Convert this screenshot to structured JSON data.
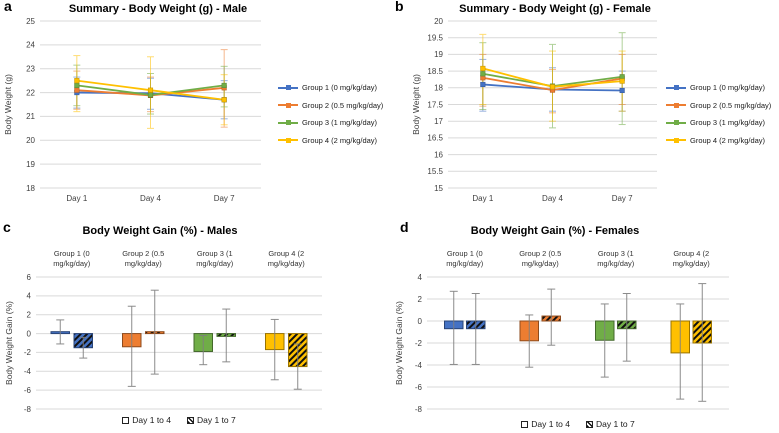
{
  "chart_data": [
    {
      "panel_letter": "a",
      "type": "line",
      "title": "Summary - Body Weight (g) - Male",
      "ylabel": "Body Weight (g)",
      "categories": [
        "Day 1",
        "Day 4",
        "Day 7"
      ],
      "ylim": [
        18,
        25
      ],
      "ystep": 1,
      "grid": true,
      "legend_position": "right",
      "series": [
        {
          "name": "Group 1 (0 mg/kg/day)",
          "color": "#4472C4",
          "values": [
            22.0,
            21.97,
            21.7
          ],
          "err_lo": [
            21.35,
            21.3,
            20.9
          ],
          "err_hi": [
            22.65,
            22.6,
            22.5
          ]
        },
        {
          "name": "Group 2 (0.5 mg/kg/day)",
          "color": "#ED7D31",
          "values": [
            22.1,
            21.88,
            22.2
          ],
          "err_lo": [
            21.3,
            21.2,
            20.55
          ],
          "err_hi": [
            22.9,
            22.65,
            23.8
          ]
        },
        {
          "name": "Group 3 (1 mg/kg/day)",
          "color": "#70AD47",
          "values": [
            22.3,
            21.9,
            22.3
          ],
          "err_lo": [
            21.45,
            21.1,
            21.4
          ],
          "err_hi": [
            23.15,
            22.8,
            23.1
          ]
        },
        {
          "name": "Group 4 (2 mg/kg/day)",
          "color": "#FFC000",
          "values": [
            22.5,
            22.1,
            21.7
          ],
          "err_lo": [
            21.2,
            20.5,
            20.65
          ],
          "err_hi": [
            23.55,
            23.5,
            22.75
          ]
        }
      ]
    },
    {
      "panel_letter": "b",
      "type": "line",
      "title": "Summary - Body Weight (g) - Female",
      "ylabel": "Body Weight (g)",
      "categories": [
        "Day 1",
        "Day 4",
        "Day 7"
      ],
      "ylim": [
        15,
        20
      ],
      "ystep": 0.5,
      "grid": true,
      "legend_position": "right",
      "series": [
        {
          "name": "Group 1 (0 mg/kg/day)",
          "color": "#4472C4",
          "values": [
            18.1,
            17.95,
            17.92
          ],
          "err_lo": [
            17.3,
            17.3,
            17.3
          ],
          "err_hi": [
            18.85,
            18.6,
            18.5
          ]
        },
        {
          "name": "Group 2 (0.5 mg/kg/day)",
          "color": "#ED7D31",
          "values": [
            18.3,
            17.93,
            18.28
          ],
          "err_lo": [
            17.45,
            17.25,
            17.5
          ],
          "err_hi": [
            19.0,
            18.55,
            19.0
          ]
        },
        {
          "name": "Group 3 (1 mg/kg/day)",
          "color": "#70AD47",
          "values": [
            18.42,
            18.05,
            18.33
          ],
          "err_lo": [
            17.35,
            16.8,
            16.9
          ],
          "err_hi": [
            19.35,
            19.3,
            19.65
          ]
        },
        {
          "name": "Group 4 (2 mg/kg/day)",
          "color": "#FFC000",
          "values": [
            18.58,
            18.03,
            18.2
          ],
          "err_lo": [
            17.5,
            17.0,
            17.3
          ],
          "err_hi": [
            19.6,
            19.1,
            19.1
          ]
        }
      ]
    },
    {
      "panel_letter": "c",
      "type": "bar",
      "title": "Body Weight Gain (%) - Males",
      "ylabel": "Body Weight Gain (%)",
      "group_labels": [
        [
          "Group 1 (0",
          "mg/kg/day)"
        ],
        [
          "Group 2 (0.5",
          "mg/kg/day)"
        ],
        [
          "Group 3 (1",
          "mg/kg/day)"
        ],
        [
          "Group 4 (2",
          "mg/kg/day)"
        ]
      ],
      "group_colors": [
        "#4472C4",
        "#ED7D31",
        "#70AD47",
        "#FFC000"
      ],
      "ylim": [
        -8,
        6
      ],
      "ystep": 2,
      "grid": true,
      "legend_position": "bottom",
      "series": [
        {
          "name": "Day 1 to 4",
          "style": "solid",
          "values": [
            0.2,
            -1.4,
            -1.9,
            -1.7
          ],
          "err_lo": [
            -1.1,
            -5.6,
            -3.3,
            -4.9
          ],
          "err_hi": [
            1.45,
            2.9,
            -0.2,
            1.5
          ]
        },
        {
          "name": "Day 1 to 7",
          "style": "hatched",
          "values": [
            -1.5,
            0.2,
            -0.3,
            -3.5
          ],
          "err_lo": [
            -2.6,
            -4.3,
            -3.0,
            -5.9
          ],
          "err_hi": [
            -0.4,
            4.6,
            2.6,
            -1.1
          ]
        }
      ]
    },
    {
      "panel_letter": "d",
      "type": "bar",
      "title": "Body Weight Gain (%) - Females",
      "ylabel": "Body Weight Gain (%)",
      "group_labels": [
        [
          "Group 1 (0",
          "mg/kg/day)"
        ],
        [
          "Group 2 (0.5",
          "mg/kg/day)"
        ],
        [
          "Group 3 (1",
          "mg/kg/day)"
        ],
        [
          "Group 4 (2",
          "mg/kg/day)"
        ]
      ],
      "group_colors": [
        "#4472C4",
        "#ED7D31",
        "#70AD47",
        "#FFC000"
      ],
      "ylim": [
        -8,
        4
      ],
      "ystep": 2,
      "grid": true,
      "legend_position": "bottom",
      "series": [
        {
          "name": "Day 1 to 4",
          "style": "solid",
          "values": [
            -0.7,
            -1.8,
            -1.75,
            -2.9
          ],
          "err_lo": [
            -3.95,
            -4.2,
            -5.1,
            -7.1
          ],
          "err_hi": [
            2.7,
            0.55,
            1.55,
            1.55
          ]
        },
        {
          "name": "Day 1 to 7",
          "style": "hatched",
          "values": [
            -0.7,
            0.45,
            -0.7,
            -2.0
          ],
          "err_lo": [
            -3.95,
            -2.2,
            -3.65,
            -7.3
          ],
          "err_hi": [
            2.5,
            2.9,
            2.5,
            3.4
          ]
        }
      ]
    }
  ]
}
